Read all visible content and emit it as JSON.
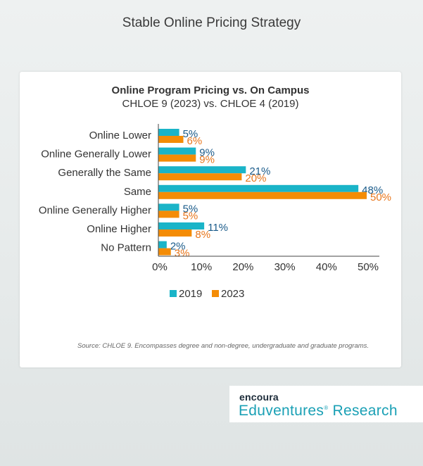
{
  "page": {
    "title": "Stable Online Pricing Strategy",
    "source": "Source: CHLOE 9. Encompasses degree and non-degree, undergraduate and graduate programs."
  },
  "logo": {
    "brand": "encoura",
    "name": "Eduventures",
    "reg": "®",
    "suffix": " Research"
  },
  "colors": {
    "series_2019": "#1ab4c8",
    "series_2023": "#f48c06",
    "label_2019": "#1a5b8a",
    "label_2023": "#e8761c"
  },
  "chart_data": {
    "type": "bar",
    "orientation": "horizontal",
    "title": "Online Program Pricing vs. On Campus",
    "subtitle": "CHLOE 9 (2023) vs. CHLOE 4 (2019)",
    "categories": [
      "Online Lower",
      "Online Generally Lower",
      "Generally the Same",
      "Same",
      "Online Generally Higher",
      "Online Higher",
      "No Pattern"
    ],
    "series": [
      {
        "name": "2019",
        "values": [
          5,
          9,
          21,
          48,
          5,
          11,
          2
        ]
      },
      {
        "name": "2023",
        "values": [
          6,
          9,
          20,
          50,
          5,
          8,
          3
        ]
      }
    ],
    "xlim": [
      0,
      50
    ],
    "xticks": [
      0,
      10,
      20,
      30,
      40,
      50
    ],
    "tick_suffix": "%",
    "legend_position": "bottom"
  }
}
